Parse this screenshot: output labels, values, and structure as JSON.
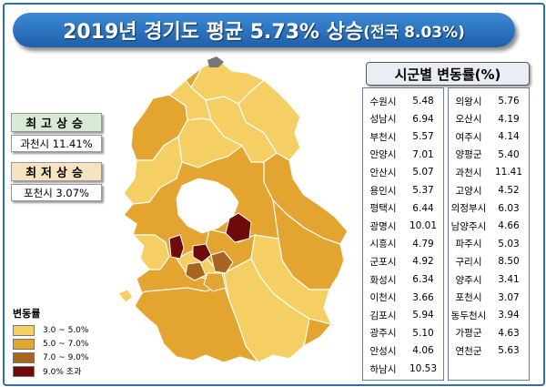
{
  "title": {
    "main": "2019년 경기도 평균 5.73% 상승",
    "sub": "(전국 8.03%)"
  },
  "highest": {
    "header": "최고상승",
    "value": "과천시 11.41%"
  },
  "lowest": {
    "header": "최저상승",
    "value": "포천시 3.07%"
  },
  "legend": {
    "title": "변동률",
    "items": [
      {
        "label": "3.0 ~ 5.0%",
        "color": "#f5cf63"
      },
      {
        "label": "5.0 ~ 7.0%",
        "color": "#e4a530"
      },
      {
        "label": "7.0 ~ 9.0%",
        "color": "#a86420"
      },
      {
        "label": "9.0% 초과",
        "color": "#6e0a0a"
      }
    ]
  },
  "table": {
    "title": "시군별 변동률(%)",
    "left": [
      {
        "name": "수원시",
        "value": "5.48"
      },
      {
        "name": "성남시",
        "value": "6.94"
      },
      {
        "name": "부천시",
        "value": "5.57"
      },
      {
        "name": "안양시",
        "value": "7.01"
      },
      {
        "name": "안산시",
        "value": "5.07"
      },
      {
        "name": "용인시",
        "value": "5.37"
      },
      {
        "name": "평택시",
        "value": "6.44"
      },
      {
        "name": "광명시",
        "value": "10.01"
      },
      {
        "name": "시흥시",
        "value": "4.79"
      },
      {
        "name": "군포시",
        "value": "4.92"
      },
      {
        "name": "화성시",
        "value": "6.34"
      },
      {
        "name": "이천시",
        "value": "3.66"
      },
      {
        "name": "김포시",
        "value": "5.94"
      },
      {
        "name": "광주시",
        "value": "5.10"
      },
      {
        "name": "안성시",
        "value": "4.06"
      },
      {
        "name": "하남시",
        "value": "10.53"
      }
    ],
    "right": [
      {
        "name": "의왕시",
        "value": "5.76"
      },
      {
        "name": "오산시",
        "value": "4.19"
      },
      {
        "name": "여주시",
        "value": "4.14"
      },
      {
        "name": "양평군",
        "value": "5.40"
      },
      {
        "name": "과천시",
        "value": "11.41"
      },
      {
        "name": "고양시",
        "value": "4.52"
      },
      {
        "name": "의정부시",
        "value": "6.03"
      },
      {
        "name": "남양주시",
        "value": "4.66"
      },
      {
        "name": "파주시",
        "value": "5.03"
      },
      {
        "name": "구리시",
        "value": "8.50"
      },
      {
        "name": "양주시",
        "value": "3.41"
      },
      {
        "name": "포천시",
        "value": "3.07"
      },
      {
        "name": "동두천시",
        "value": "3.94"
      },
      {
        "name": "가평군",
        "value": "4.63"
      },
      {
        "name": "연천군",
        "value": "5.63"
      }
    ]
  }
}
